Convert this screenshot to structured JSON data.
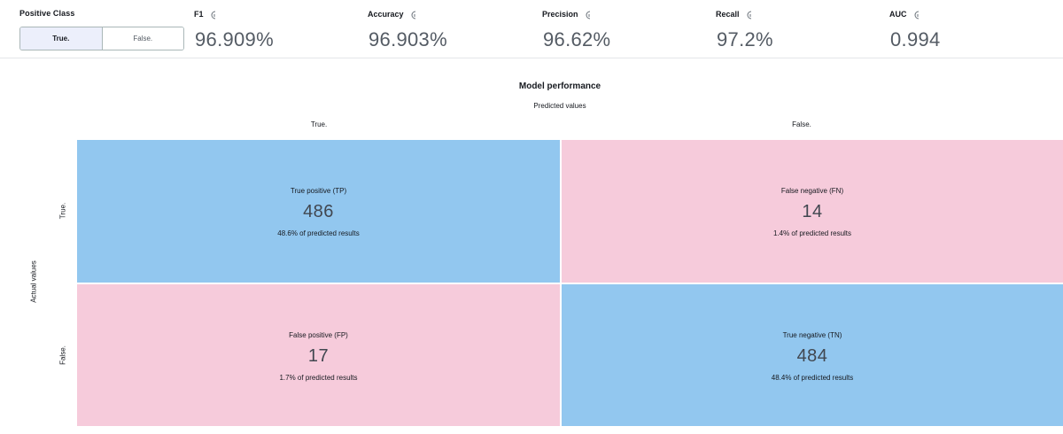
{
  "positive_class": {
    "label": "Positive Class",
    "options": [
      "True.",
      "False."
    ],
    "selected": "True."
  },
  "metrics": [
    {
      "name": "F1",
      "value": "96.909%",
      "icon": "info-icon"
    },
    {
      "name": "Accuracy",
      "value": "96.903%",
      "icon": "info-icon"
    },
    {
      "name": "Precision",
      "value": "96.62%",
      "icon": "info-icon"
    },
    {
      "name": "Recall",
      "value": "97.2%",
      "icon": "info-icon"
    },
    {
      "name": "AUC",
      "value": "0.994",
      "icon": "info-icon"
    }
  ],
  "matrix": {
    "title": "Model performance",
    "predicted_label": "Predicted values",
    "actual_label": "Actual values",
    "columns": [
      "True.",
      "False."
    ],
    "rows": [
      "True.",
      "False."
    ],
    "cells": [
      {
        "title": "True positive (TP)",
        "count": "486",
        "pct": "48.6% of predicted results",
        "color": "#92c7ef"
      },
      {
        "title": "False negative (FN)",
        "count": "14",
        "pct": "1.4% of predicted results",
        "color": "#f6cbdb"
      },
      {
        "title": "False positive (FP)",
        "count": "17",
        "pct": "1.7% of predicted results",
        "color": "#f6cbdb"
      },
      {
        "title": "True negative (TN)",
        "count": "484",
        "pct": "48.4% of predicted results",
        "color": "#92c7ef"
      }
    ]
  }
}
